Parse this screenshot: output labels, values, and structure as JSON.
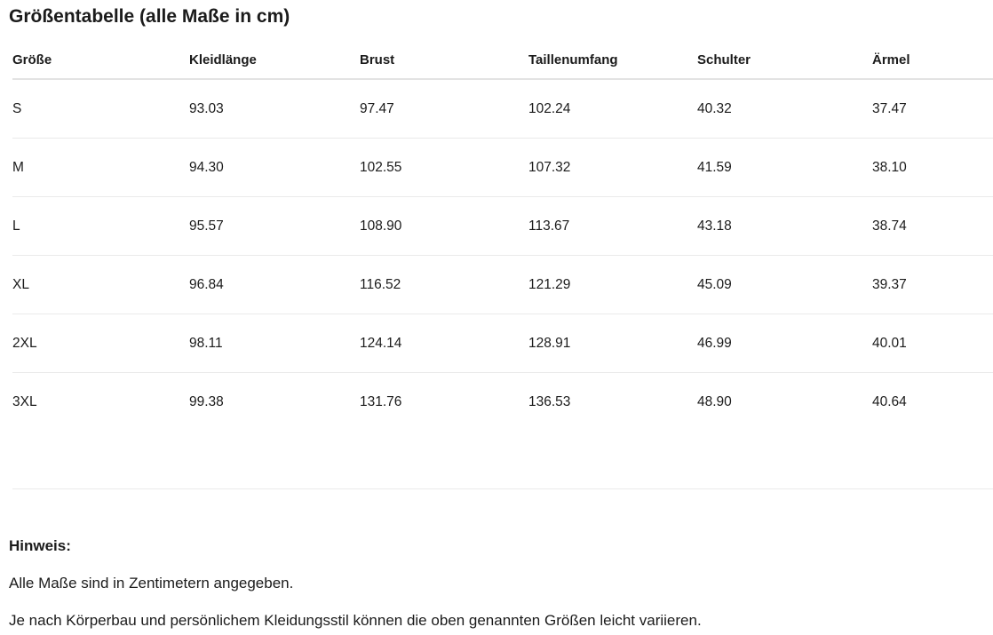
{
  "page": {
    "title": "Größentabelle (alle Maße in cm)"
  },
  "table": {
    "headers": [
      "Größe",
      "Kleidlänge",
      "Brust",
      "Taillenumfang",
      "Schulter",
      "Ärmel"
    ],
    "rows": [
      {
        "size": "S",
        "values": [
          "93.03",
          "97.47",
          "102.24",
          "40.32",
          "37.47"
        ]
      },
      {
        "size": "M",
        "values": [
          "94.30",
          "102.55",
          "107.32",
          "41.59",
          "38.10"
        ]
      },
      {
        "size": "L",
        "values": [
          "95.57",
          "108.90",
          "113.67",
          "43.18",
          "38.74"
        ]
      },
      {
        "size": "XL",
        "values": [
          "96.84",
          "116.52",
          "121.29",
          "45.09",
          "39.37"
        ]
      },
      {
        "size": "2XL",
        "values": [
          "98.11",
          "124.14",
          "128.91",
          "46.99",
          "40.01"
        ]
      },
      {
        "size": "3XL",
        "values": [
          "99.38",
          "131.76",
          "136.53",
          "48.90",
          "40.64"
        ]
      }
    ]
  },
  "note": {
    "heading": "Hinweis:",
    "line1": "Alle Maße sind in Zentimetern angegeben.",
    "line2": "Je nach Körperbau und persönlichem Kleidungsstil können die oben genannten Größen leicht variieren."
  },
  "colors": {
    "text": "#1b1b1b",
    "divider": "#eaeaea"
  }
}
